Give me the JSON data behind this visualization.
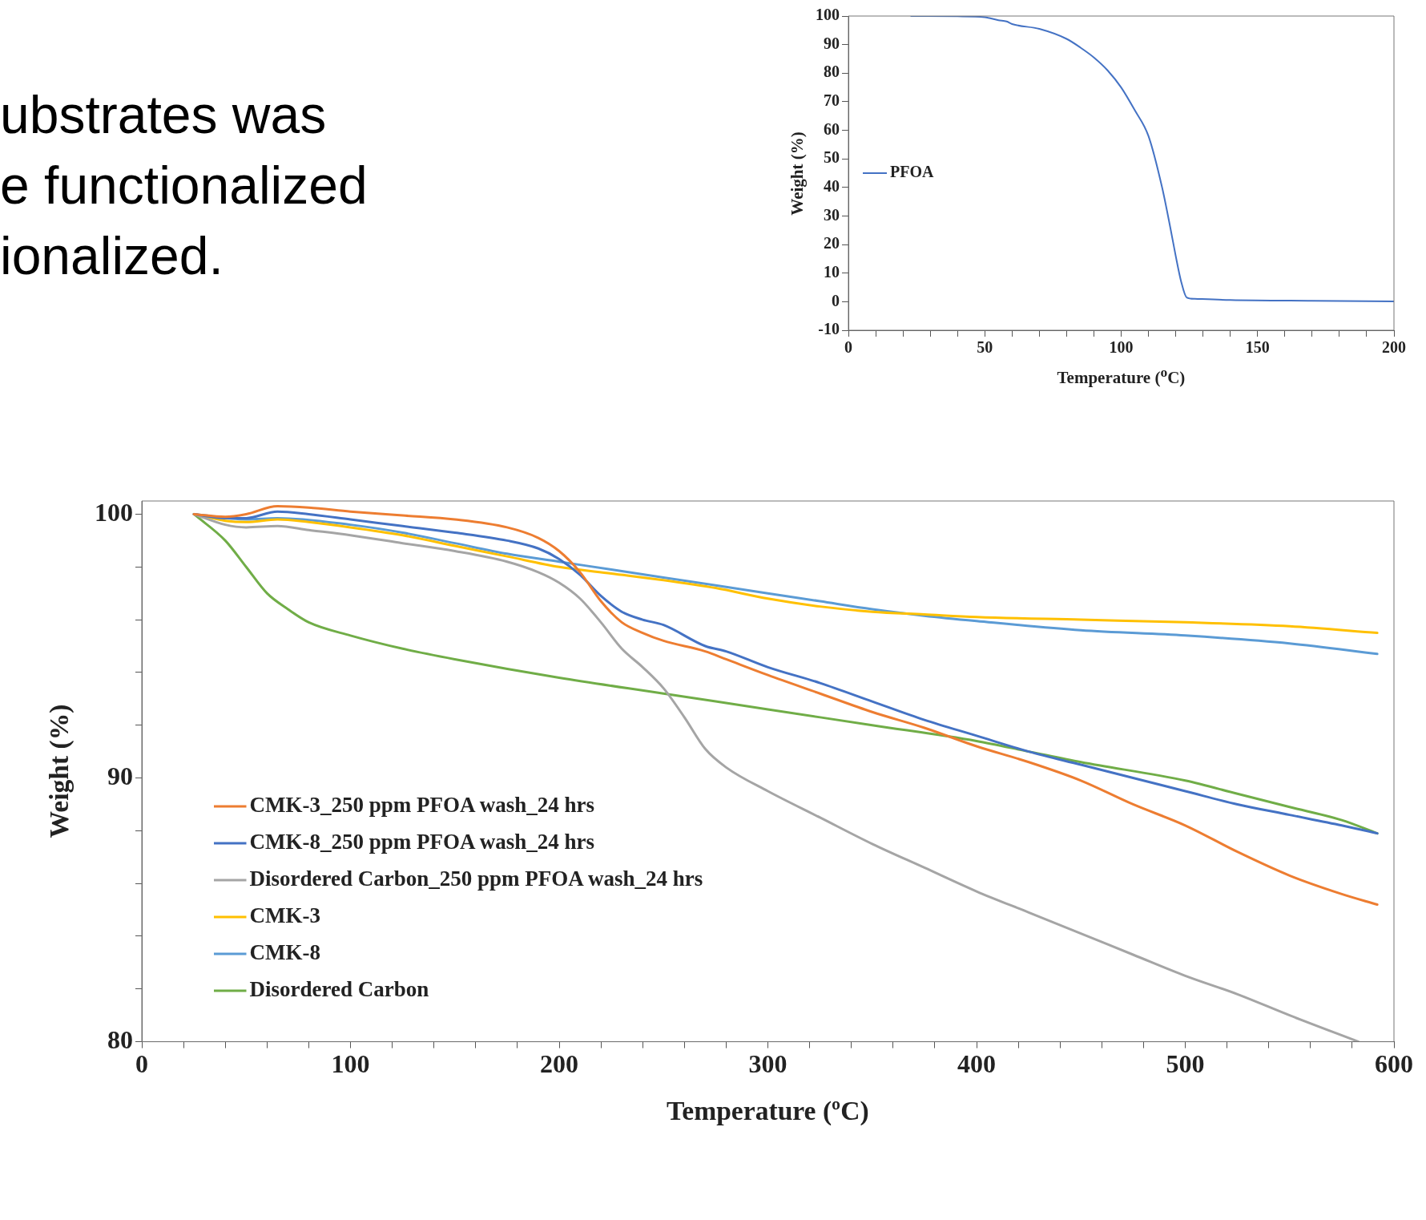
{
  "chart_data": [
    {
      "type": "other",
      "annotations": [
        "ubstrates was",
        "e functionalized",
        "ionalized."
      ]
    },
    {
      "type": "line",
      "xlabel": "Temperature ($^{o}$C)",
      "ylabel": "Weight (%)",
      "xlim": [
        0,
        200
      ],
      "ylim": [
        -10,
        100
      ],
      "xticks": [
        0,
        {
          "value": 10,
          "label": null
        },
        {
          "value": 20,
          "label": null
        },
        {
          "value": 30,
          "label": null
        },
        {
          "value": 40,
          "label": null
        },
        50,
        {
          "value": 60,
          "label": null
        },
        {
          "value": 70,
          "label": null
        },
        {
          "value": 80,
          "label": null
        },
        {
          "value": 90,
          "label": null
        },
        100,
        {
          "value": 110,
          "label": null
        },
        {
          "value": 120,
          "label": null
        },
        {
          "value": 130,
          "label": null
        },
        {
          "value": 140,
          "label": null
        },
        150,
        {
          "value": 160,
          "label": null
        },
        {
          "value": 170,
          "label": null
        },
        {
          "value": 180,
          "label": null
        },
        {
          "value": 190,
          "label": null
        },
        200
      ],
      "yticks": [
        -10,
        0,
        10,
        20,
        30,
        40,
        50,
        60,
        70,
        80,
        90,
        100
      ],
      "legend": "left",
      "marker": "none",
      "line_style": "solid",
      "series": [
        {
          "name": "PFOA",
          "color": "#4472c4",
          "x": [
            23,
            40,
            50,
            55,
            58,
            60,
            70,
            80,
            85,
            90,
            95,
            100,
            105,
            110,
            115,
            118,
            120,
            122,
            124,
            127,
            140,
            170,
            200
          ],
          "values": [
            100,
            99.9,
            99.6,
            98.5,
            98.1,
            97.2,
            95.5,
            92,
            89,
            85.5,
            81,
            75,
            67,
            58,
            40,
            26,
            16,
            7,
            1.5,
            1,
            0.6,
            0.3,
            0.1
          ]
        }
      ]
    },
    {
      "type": "line",
      "xlabel": "Temperature (ºC)",
      "ylabel": "Weight (%)",
      "xlim": [
        0,
        600
      ],
      "ylim": [
        80,
        100.5
      ],
      "xticks": [
        0,
        {
          "value": 20,
          "label": null
        },
        {
          "value": 40,
          "label": null
        },
        {
          "value": 60,
          "label": null
        },
        {
          "value": 80,
          "label": null
        },
        100,
        {
          "value": 120,
          "label": null
        },
        {
          "value": 140,
          "label": null
        },
        {
          "value": 160,
          "label": null
        },
        {
          "value": 180,
          "label": null
        },
        200,
        {
          "value": 220,
          "label": null
        },
        {
          "value": 240,
          "label": null
        },
        {
          "value": 260,
          "label": null
        },
        {
          "value": 280,
          "label": null
        },
        300,
        {
          "value": 320,
          "label": null
        },
        {
          "value": 340,
          "label": null
        },
        {
          "value": 360,
          "label": null
        },
        {
          "value": 380,
          "label": null
        },
        400,
        {
          "value": 420,
          "label": null
        },
        {
          "value": 440,
          "label": null
        },
        {
          "value": 460,
          "label": null
        },
        {
          "value": 480,
          "label": null
        },
        500,
        {
          "value": 520,
          "label": null
        },
        {
          "value": 540,
          "label": null
        },
        {
          "value": 560,
          "label": null
        },
        {
          "value": 580,
          "label": null
        },
        600
      ],
      "yticks": [
        80,
        {
          "value": 82,
          "label": null
        },
        {
          "value": 84,
          "label": null
        },
        {
          "value": 86,
          "label": null
        },
        {
          "value": 88,
          "label": null
        },
        90,
        {
          "value": 92,
          "label": null
        },
        {
          "value": 94,
          "label": null
        },
        {
          "value": 96,
          "label": null
        },
        {
          "value": 98,
          "label": null
        },
        100
      ],
      "legend": "bottom left",
      "marker": "none",
      "line_style": "solid",
      "series": [
        {
          "name": "CMK-3_250 ppm PFOA wash_24 hrs",
          "color": "#ed7d31",
          "x": [
            25,
            40,
            50,
            65,
            80,
            100,
            125,
            150,
            175,
            190,
            200,
            210,
            220,
            230,
            240,
            250,
            270,
            280,
            300,
            325,
            350,
            375,
            400,
            425,
            450,
            475,
            500,
            525,
            550,
            575,
            592
          ],
          "values": [
            100,
            99.9,
            100,
            100.3,
            100.25,
            100.1,
            99.95,
            99.8,
            99.5,
            99.1,
            98.6,
            97.8,
            96.7,
            95.9,
            95.5,
            95.2,
            94.8,
            94.5,
            93.9,
            93.2,
            92.5,
            91.9,
            91.2,
            90.6,
            89.9,
            89,
            88.2,
            87.2,
            86.3,
            85.6,
            85.2
          ]
        },
        {
          "name": "CMK-8_250 ppm PFOA wash_24 hrs",
          "color": "#4472c4",
          "x": [
            25,
            40,
            50,
            65,
            80,
            100,
            125,
            150,
            175,
            190,
            200,
            210,
            220,
            230,
            240,
            250,
            270,
            280,
            300,
            325,
            350,
            375,
            400,
            425,
            450,
            475,
            500,
            525,
            550,
            575,
            592
          ],
          "values": [
            100,
            99.85,
            99.85,
            100.1,
            100,
            99.8,
            99.55,
            99.3,
            99,
            98.7,
            98.3,
            97.7,
            96.9,
            96.3,
            96,
            95.8,
            95,
            94.8,
            94.2,
            93.6,
            92.9,
            92.2,
            91.6,
            91,
            90.5,
            90,
            89.5,
            89,
            88.6,
            88.2,
            87.9
          ]
        },
        {
          "name": "Disordered Carbon_250 ppm PFOA wash_24 hrs",
          "color": "#a5a5a5",
          "x": [
            25,
            40,
            50,
            65,
            80,
            100,
            125,
            150,
            175,
            190,
            200,
            210,
            220,
            230,
            240,
            250,
            260,
            270,
            280,
            300,
            325,
            350,
            375,
            400,
            425,
            450,
            475,
            500,
            525,
            550,
            583
          ],
          "values": [
            100,
            99.6,
            99.5,
            99.55,
            99.4,
            99.2,
            98.9,
            98.6,
            98.2,
            97.8,
            97.4,
            96.8,
            95.9,
            94.9,
            94.2,
            93.4,
            92.3,
            91.1,
            90.4,
            89.5,
            88.5,
            87.5,
            86.6,
            85.7,
            84.9,
            84.1,
            83.3,
            82.5,
            81.8,
            81,
            80
          ]
        },
        {
          "name": "CMK-3",
          "color": "#ffc000",
          "x": [
            25,
            40,
            50,
            65,
            80,
            100,
            125,
            150,
            175,
            200,
            225,
            250,
            275,
            300,
            325,
            350,
            375,
            400,
            450,
            500,
            550,
            592
          ],
          "values": [
            100,
            99.75,
            99.7,
            99.8,
            99.7,
            99.5,
            99.2,
            98.8,
            98.4,
            98,
            97.75,
            97.5,
            97.2,
            96.8,
            96.5,
            96.3,
            96.2,
            96.1,
            96,
            95.9,
            95.75,
            95.5
          ]
        },
        {
          "name": "CMK-8",
          "color": "#5b9bd5",
          "x": [
            25,
            50,
            65,
            100,
            125,
            150,
            175,
            200,
            225,
            250,
            275,
            300,
            325,
            350,
            375,
            400,
            450,
            500,
            550,
            592
          ],
          "values": [
            100,
            99.8,
            99.85,
            99.6,
            99.3,
            98.9,
            98.5,
            98.2,
            97.9,
            97.6,
            97.3,
            97,
            96.7,
            96.4,
            96.15,
            95.95,
            95.6,
            95.4,
            95.1,
            94.7
          ]
        },
        {
          "name": "Disordered Carbon",
          "color": "#70ad47",
          "x": [
            25,
            40,
            50,
            60,
            70,
            80,
            100,
            125,
            150,
            200,
            250,
            300,
            350,
            400,
            425,
            450,
            500,
            525,
            550,
            575,
            592
          ],
          "values": [
            100,
            99,
            98,
            97,
            96.4,
            95.9,
            95.4,
            94.9,
            94.5,
            93.8,
            93.2,
            92.6,
            92,
            91.4,
            91,
            90.6,
            89.9,
            89.4,
            88.9,
            88.4,
            87.9
          ]
        }
      ]
    }
  ]
}
